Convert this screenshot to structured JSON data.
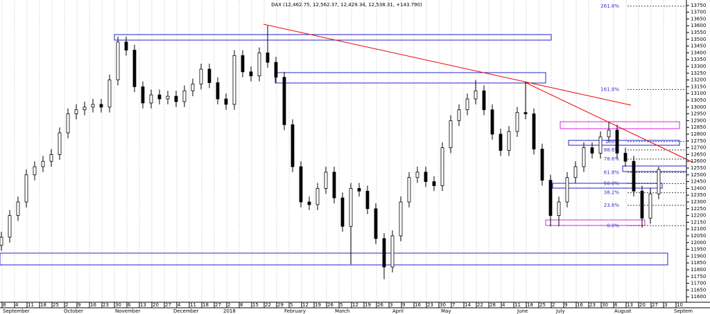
{
  "chart_data": {
    "type": "candlestick",
    "title": "DAX (12,462.75, 12,562.37, 12,429.34, 12,538.31, +143.790)",
    "open": [
      11980,
      12040,
      12200,
      12300,
      12500,
      12560,
      12600,
      12650,
      12810,
      12950,
      12980,
      13000,
      13020,
      13000,
      13200,
      13480,
      13420,
      13150,
      13030,
      13090,
      13060,
      13080,
      13040,
      13120,
      13170,
      13280,
      13180,
      13060,
      13020,
      13380,
      13260,
      13230,
      13400,
      13330,
      13220,
      12870,
      12560,
      12300,
      12280,
      12400,
      12520,
      12330,
      12120,
      12400,
      12380,
      12250,
      12030,
      11820,
      12050,
      12300,
      12480,
      12520,
      12450,
      12420,
      12700,
      12900,
      12980,
      13060,
      13120,
      12980,
      12800,
      12680,
      12820,
      12960,
      12950,
      12690,
      12460,
      12200,
      12300,
      12480,
      12560,
      12700,
      12660,
      12780,
      12830,
      12660,
      12600,
      12380,
      12180,
      12360
    ],
    "high": [
      12080,
      12240,
      12340,
      12540,
      12600,
      12640,
      12690,
      12850,
      12990,
      13020,
      13040,
      13060,
      13060,
      13240,
      13520,
      13520,
      13460,
      13190,
      13130,
      13130,
      13120,
      13120,
      13160,
      13210,
      13320,
      13320,
      13220,
      13100,
      13420,
      13420,
      13300,
      13440,
      13600,
      13370,
      13260,
      12910,
      12600,
      12340,
      12440,
      12560,
      12560,
      12370,
      12440,
      12440,
      12420,
      12290,
      12070,
      12090,
      12340,
      12520,
      12560,
      12560,
      12490,
      12740,
      12940,
      13020,
      13100,
      13200,
      13160,
      13020,
      12840,
      12860,
      13000,
      13180,
      12990,
      12730,
      12500,
      12340,
      12520,
      12600,
      12740,
      12740,
      12820,
      12890,
      12870,
      12700,
      12640,
      12420,
      12400,
      12560
    ],
    "low": [
      11940,
      12000,
      12160,
      12260,
      12460,
      12520,
      12560,
      12610,
      12770,
      12910,
      12940,
      12960,
      12960,
      12960,
      13160,
      13380,
      13110,
      12990,
      12990,
      13020,
      13020,
      13000,
      13000,
      13080,
      13130,
      13140,
      13020,
      12980,
      12980,
      13220,
      13190,
      13190,
      13290,
      13180,
      12830,
      12520,
      12260,
      12240,
      12240,
      12360,
      12290,
      12080,
      11840,
      12340,
      12210,
      11990,
      11730,
      11780,
      12010,
      12260,
      12440,
      12410,
      12380,
      12380,
      12660,
      12860,
      12940,
      13020,
      12940,
      12760,
      12640,
      12640,
      12780,
      12910,
      12650,
      12420,
      12120,
      12120,
      12260,
      12440,
      12520,
      12620,
      12620,
      12740,
      12620,
      12560,
      12340,
      12110,
      12140,
      12320
    ],
    "close": [
      12040,
      12200,
      12300,
      12500,
      12560,
      12600,
      12650,
      12810,
      12950,
      12980,
      13000,
      13020,
      13000,
      13200,
      13480,
      13420,
      13150,
      13030,
      13090,
      13060,
      13080,
      13040,
      13120,
      13170,
      13280,
      13180,
      13060,
      13020,
      13380,
      13260,
      13230,
      13400,
      13330,
      13220,
      12870,
      12560,
      12300,
      12280,
      12400,
      12520,
      12330,
      12120,
      12400,
      12380,
      12250,
      12030,
      11820,
      12050,
      12300,
      12480,
      12520,
      12450,
      12420,
      12700,
      12900,
      12980,
      13060,
      13120,
      12980,
      12800,
      12680,
      12820,
      12960,
      12950,
      12690,
      12460,
      12200,
      12300,
      12480,
      12560,
      12700,
      12660,
      12780,
      12830,
      12660,
      12600,
      12380,
      12180,
      12360,
      12540
    ],
    "ylim": [
      11560,
      13790
    ],
    "yticks": [
      11600,
      11650,
      11700,
      11750,
      11800,
      11850,
      11900,
      11950,
      12000,
      12050,
      12100,
      12150,
      12200,
      12250,
      12300,
      12350,
      12400,
      12450,
      12500,
      12550,
      12600,
      12650,
      12700,
      12750,
      12800,
      12850,
      12900,
      12950,
      13000,
      13050,
      13100,
      13150,
      13200,
      13250,
      13300,
      13350,
      13400,
      13450,
      13500,
      13550,
      13600,
      13650,
      13700,
      13750
    ],
    "x_day_labels": [
      "8",
      "4",
      "11",
      "18",
      "25",
      "2",
      "9",
      "16",
      "23",
      "30",
      "6",
      "13",
      "20",
      "27",
      "4",
      "11",
      "18",
      "27",
      "2",
      "8",
      "15",
      "22",
      "29",
      "5",
      "12",
      "19",
      "26",
      "5",
      "12",
      "19",
      "26",
      "3",
      "9",
      "16",
      "23",
      "30",
      "7",
      "14",
      "22",
      "28",
      "4",
      "11",
      "18",
      "25",
      "2",
      "9",
      "16",
      "23",
      "30",
      "6",
      "13",
      "20",
      "27",
      "3",
      "10"
    ],
    "months": [
      "September",
      "October",
      "November",
      "December",
      "2018",
      "February",
      "March",
      "April",
      "May",
      "June",
      "July",
      "August",
      "Septem"
    ],
    "fib_levels": [
      {
        "label": "261.8%",
        "price": 13745
      },
      {
        "label": "161.8%",
        "price": 13130
      },
      {
        "label": "100%",
        "price": 12745
      },
      {
        "label": "88.6%",
        "price": 12683
      },
      {
        "label": "78.6%",
        "price": 12616
      },
      {
        "label": "61.8%",
        "price": 12518
      },
      {
        "label": "50.0%",
        "price": 12435
      },
      {
        "label": "38.2%",
        "price": 12368
      },
      {
        "label": "23.6%",
        "price": 12275
      },
      {
        "label": "0.0%",
        "price": 12125
      }
    ]
  }
}
